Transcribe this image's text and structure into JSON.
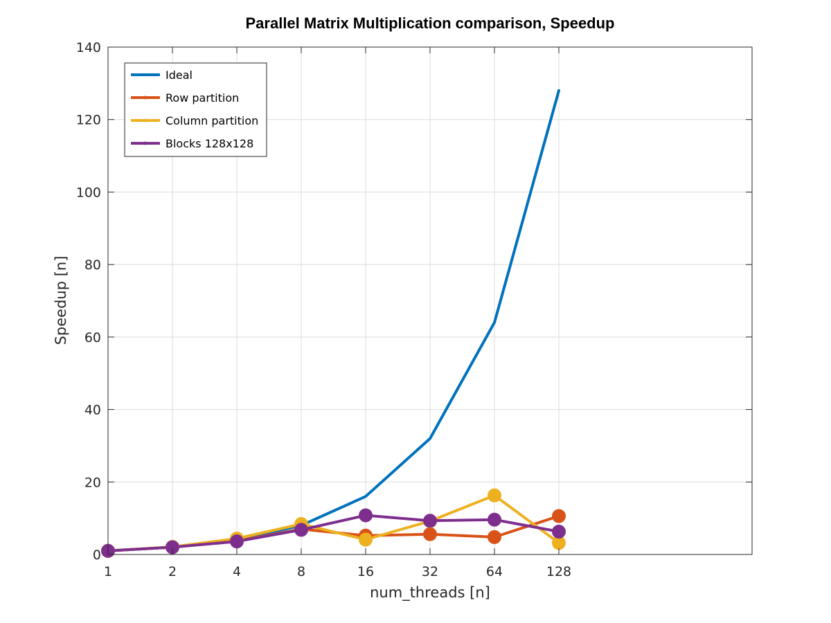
{
  "chart_data": {
    "type": "line",
    "title": "Parallel Matrix Multiplication comparison, Speedup",
    "xlabel": "num_threads [n]",
    "ylabel": "Speedup [n]",
    "x": [
      1,
      2,
      4,
      8,
      16,
      32,
      64,
      128
    ],
    "x_tick_labels": [
      "1",
      "2",
      "4",
      "8",
      "16",
      "32",
      "64",
      "128"
    ],
    "x_scale": "log2",
    "xlim": [
      1,
      1024
    ],
    "ylim": [
      0,
      140
    ],
    "y_ticks": [
      0,
      20,
      40,
      60,
      80,
      100,
      120,
      140
    ],
    "grid": true,
    "legend_position": "top-left",
    "series": [
      {
        "name": "Ideal",
        "color": "#0072BD",
        "markers": false,
        "values": [
          1,
          2,
          4,
          8,
          16,
          32,
          64,
          128
        ]
      },
      {
        "name": "Row partition",
        "color": "#D95319",
        "markers": true,
        "values": [
          1.0,
          2.0,
          3.7,
          7.0,
          5.2,
          5.6,
          4.8,
          10.6
        ]
      },
      {
        "name": "Column partition",
        "color": "#EDB120",
        "markers": true,
        "values": [
          1.0,
          2.1,
          4.4,
          8.4,
          4.1,
          9.2,
          16.3,
          3.2
        ]
      },
      {
        "name": "Blocks 128x128",
        "color": "#7E2F8E",
        "markers": true,
        "values": [
          1.0,
          2.0,
          3.6,
          6.8,
          10.8,
          9.3,
          9.6,
          6.3
        ]
      }
    ]
  }
}
